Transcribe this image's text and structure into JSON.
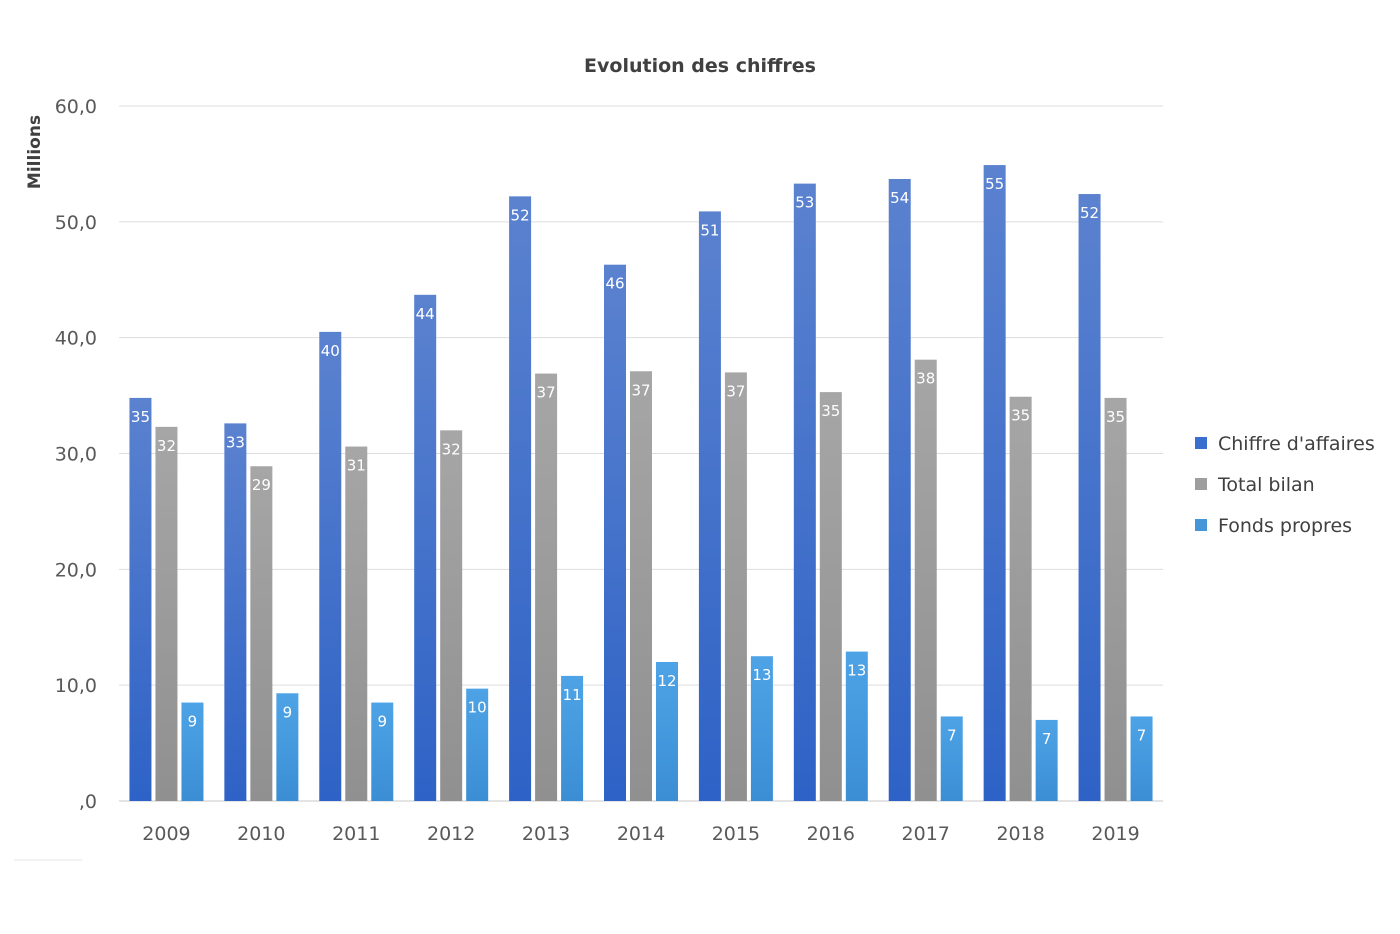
{
  "chart_data": {
    "type": "bar",
    "title": "Evolution des chiffres",
    "ylabel": "Millions",
    "xlabel": "",
    "ylim": [
      0,
      60
    ],
    "yticks": [
      0,
      10,
      20,
      30,
      40,
      50,
      60
    ],
    "ytick_labels": [
      ",0",
      "10,0",
      "20,0",
      "30,0",
      "40,0",
      "50,0",
      "60,0"
    ],
    "grid": true,
    "legend_position": "right",
    "categories": [
      "2009",
      "2010",
      "2011",
      "2012",
      "2013",
      "2014",
      "2015",
      "2016",
      "2017",
      "2018",
      "2019"
    ],
    "series": [
      {
        "name": "Chiffre d'affaires",
        "color": "#3a6fd0",
        "values": [
          34.8,
          32.6,
          40.5,
          43.7,
          52.2,
          46.3,
          50.9,
          53.3,
          53.7,
          54.9,
          52.4
        ],
        "data_labels": [
          "35",
          "33",
          "40",
          "44",
          "52",
          "46",
          "51",
          "53",
          "54",
          "55",
          "52"
        ]
      },
      {
        "name": "Total bilan",
        "color": "#9e9e9e",
        "values": [
          32.3,
          28.9,
          30.6,
          32.0,
          36.9,
          37.1,
          37.0,
          35.3,
          38.1,
          34.9,
          34.8
        ],
        "data_labels": [
          "32",
          "29",
          "31",
          "32",
          "37",
          "37",
          "37",
          "35",
          "38",
          "35",
          "35"
        ]
      },
      {
        "name": "Fonds propres",
        "color": "#4596d9",
        "values": [
          8.5,
          9.3,
          8.5,
          9.7,
          10.8,
          12.0,
          12.5,
          12.9,
          7.3,
          7.0,
          7.3
        ],
        "data_labels": [
          "9",
          "9",
          "9",
          "10",
          "11",
          "12",
          "13",
          "13",
          "7",
          "7",
          "7"
        ]
      }
    ]
  }
}
